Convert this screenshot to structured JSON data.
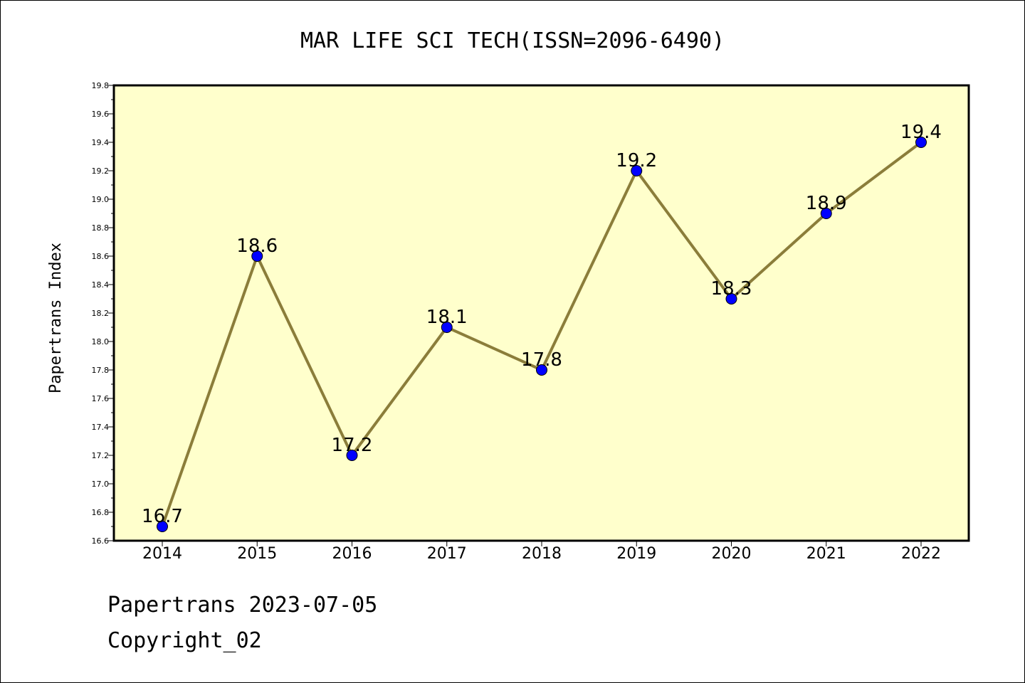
{
  "chart_data": {
    "type": "line",
    "title": "MAR LIFE SCI TECH(ISSN=2096-6490)",
    "xlabel": "",
    "ylabel": "Papertrans Index",
    "categories": [
      "2014",
      "2015",
      "2016",
      "2017",
      "2018",
      "2019",
      "2020",
      "2021",
      "2022"
    ],
    "series": [
      {
        "values": [
          16.7,
          18.6,
          17.2,
          18.1,
          17.8,
          19.2,
          18.3,
          18.9,
          19.4
        ],
        "data_labels": [
          "16.7",
          "18.6",
          "17.2",
          "18.1",
          "17.8",
          "19.2",
          "18.3",
          "18.9",
          "19.4"
        ]
      }
    ],
    "ylim": [
      16.6,
      19.8
    ],
    "yticks": [
      "16.6",
      "16.8",
      "17.0",
      "17.2",
      "17.4",
      "17.6",
      "17.8",
      "18.0",
      "18.2",
      "18.4",
      "18.6",
      "18.8",
      "19.0",
      "19.2",
      "19.4",
      "19.6",
      "19.8"
    ],
    "grid": false,
    "legend": "none",
    "colors": {
      "plot_background": "#ffffcc",
      "line": "#8b7d3a",
      "marker": "#0000ff"
    }
  },
  "footer": {
    "line1": "Papertrans 2023-07-05",
    "line2": "Copyright_02"
  }
}
